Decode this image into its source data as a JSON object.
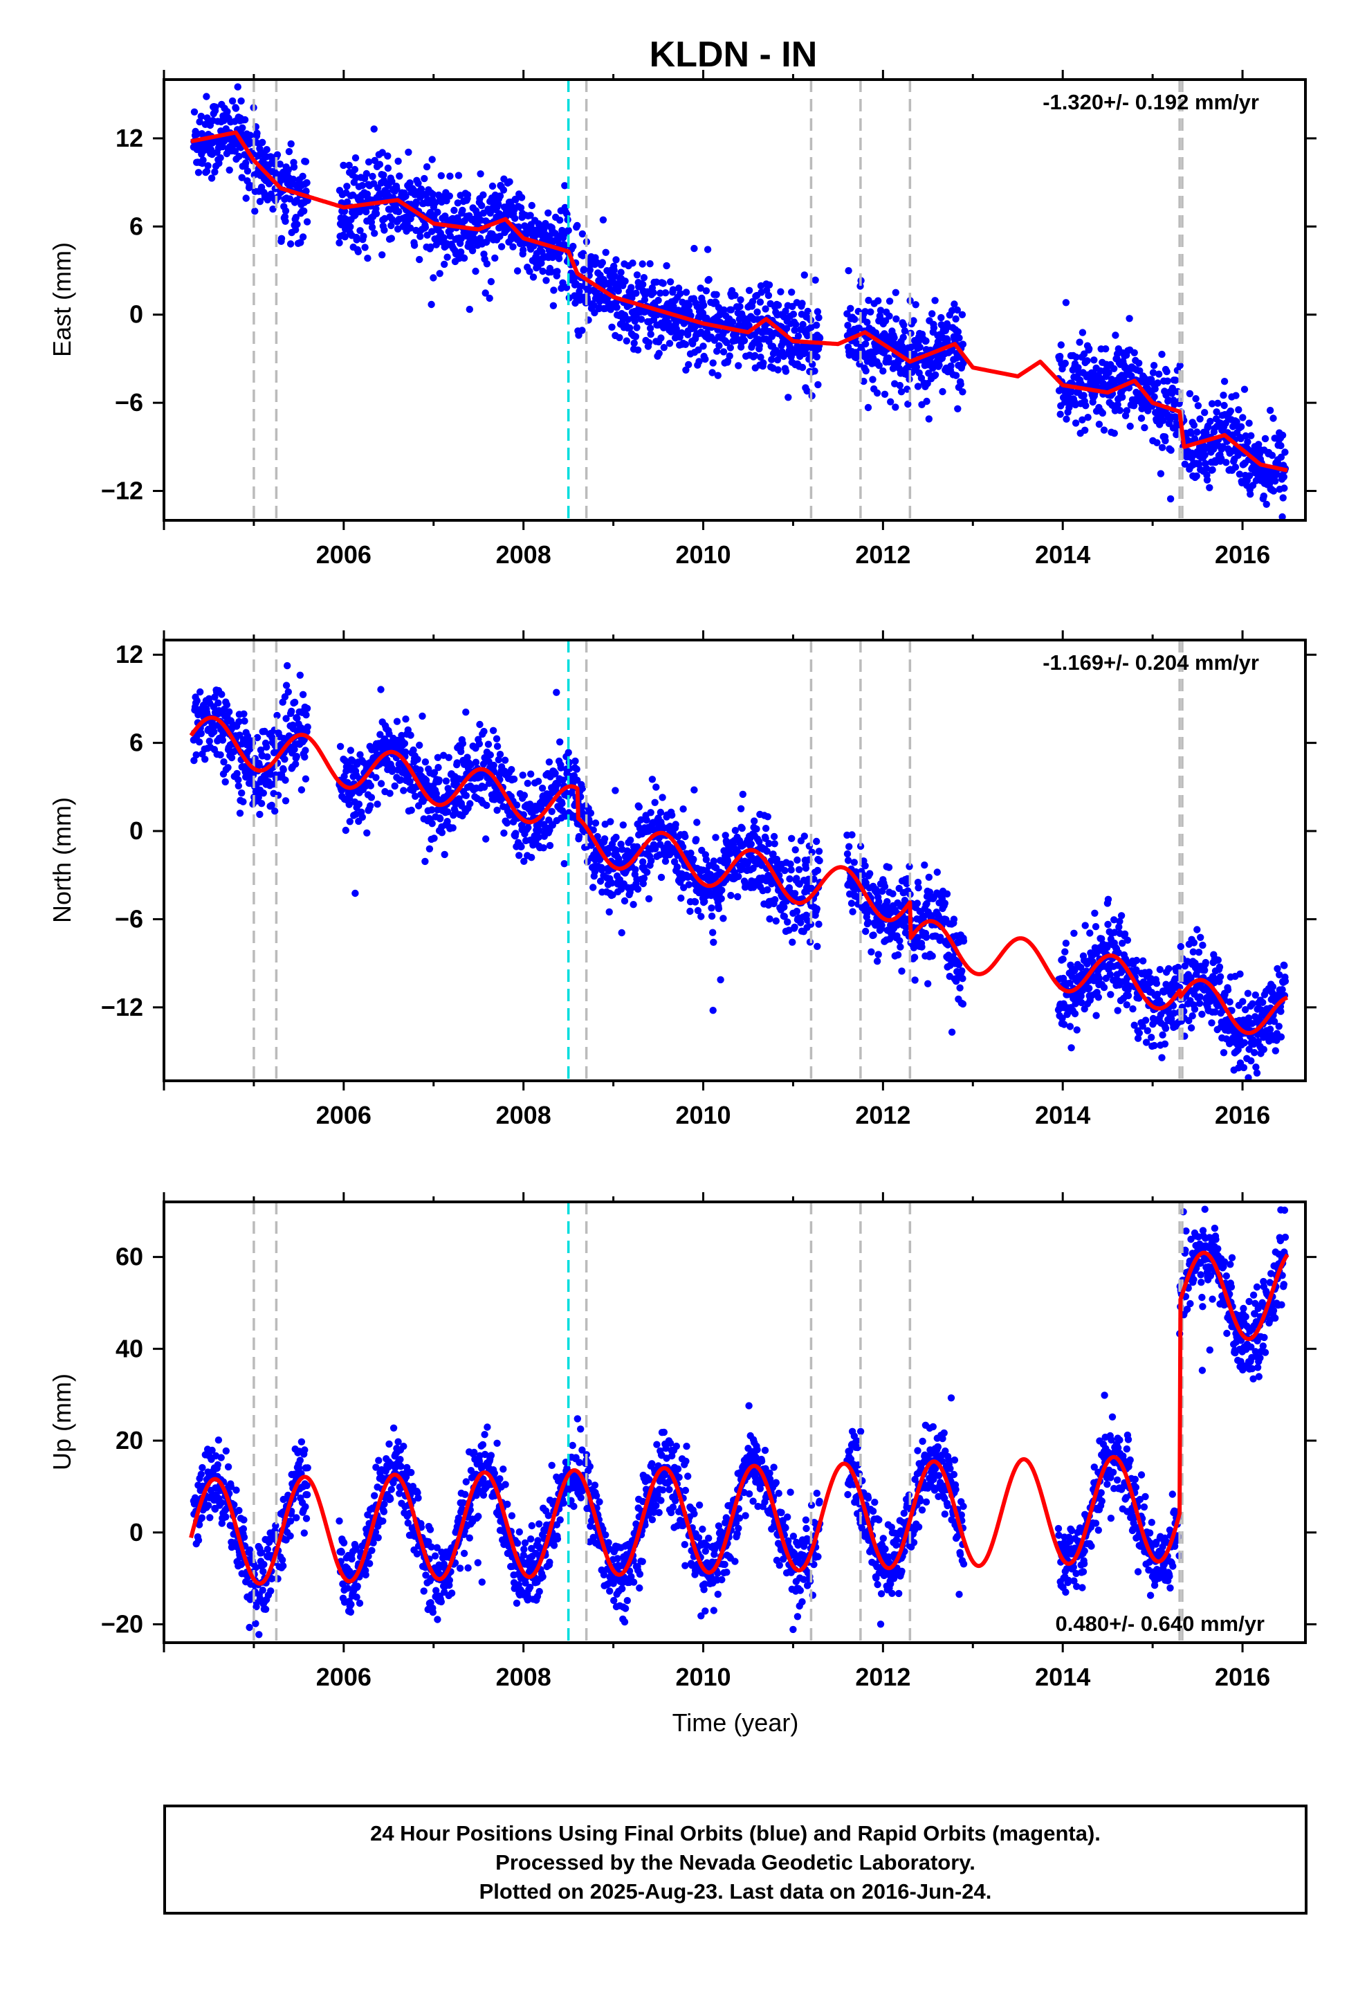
{
  "chart_data": [
    {
      "type": "scatter",
      "title": "KLDN - IN",
      "xlabel": "",
      "ylabel": "East (mm)",
      "xlim": [
        2004.0,
        2016.7
      ],
      "ylim": [
        -14,
        16
      ],
      "xticks": [
        "2006",
        "2008",
        "2010",
        "2012",
        "2014",
        "2016"
      ],
      "yticks": [
        "12",
        "6",
        "0",
        "-6",
        "-12"
      ],
      "rate_label": "-1.320+/- 0.192 mm/yr",
      "rate_position": "top-right",
      "series": [
        {
          "name": "Final Orbits",
          "color": "#0000ff",
          "style": "points"
        },
        {
          "name": "model",
          "color": "#ff0000",
          "style": "line"
        }
      ],
      "model": {
        "trend": -1.32,
        "seasonal": [
          [
            2004.3,
            11.8
          ],
          [
            2004.8,
            12.4
          ],
          [
            2005.0,
            10.5
          ],
          [
            2005.3,
            8.6
          ],
          [
            2006.0,
            7.3
          ],
          [
            2006.6,
            7.8
          ],
          [
            2007.0,
            6.2
          ],
          [
            2007.5,
            5.8
          ],
          [
            2007.8,
            6.5
          ],
          [
            2008.0,
            5.2
          ],
          [
            2008.5,
            4.3
          ],
          [
            2008.6,
            2.8
          ],
          [
            2009.0,
            1.2
          ],
          [
            2009.5,
            0.3
          ],
          [
            2010.0,
            -0.6
          ],
          [
            2010.5,
            -1.2
          ],
          [
            2010.7,
            -0.3
          ],
          [
            2011.0,
            -1.8
          ],
          [
            2011.5,
            -2.0
          ],
          [
            2011.8,
            -1.2
          ],
          [
            2012.3,
            -3.2
          ],
          [
            2012.8,
            -2.0
          ],
          [
            2013.0,
            -3.6
          ],
          [
            2013.5,
            -4.2
          ],
          [
            2013.75,
            -3.2
          ],
          [
            2014.0,
            -4.8
          ],
          [
            2014.5,
            -5.3
          ],
          [
            2014.8,
            -4.5
          ],
          [
            2015.0,
            -6.0
          ],
          [
            2015.3,
            -6.6
          ],
          [
            2015.35,
            -9.0
          ],
          [
            2015.8,
            -8.2
          ],
          [
            2016.2,
            -10.2
          ],
          [
            2016.5,
            -10.6
          ]
        ]
      },
      "vlines": {
        "gray": [
          2005.0,
          2005.25,
          2008.7,
          2011.2,
          2011.75,
          2012.3,
          2015.3,
          2015.33
        ],
        "cyan": [
          2008.5
        ]
      },
      "data_gaps": [
        [
          2005.6,
          2005.95
        ],
        [
          2011.3,
          2011.6
        ],
        [
          2012.9,
          2013.95
        ]
      ]
    },
    {
      "type": "scatter",
      "title": "",
      "xlabel": "",
      "ylabel": "North (mm)",
      "xlim": [
        2004.0,
        2016.7
      ],
      "ylim": [
        -17,
        13
      ],
      "xticks": [
        "2006",
        "2008",
        "2010",
        "2012",
        "2014",
        "2016"
      ],
      "yticks": [
        "12",
        "6",
        "0",
        "-6",
        "-12"
      ],
      "rate_label": "-1.169+/- 0.204 mm/yr",
      "rate_position": "top-right",
      "series": [
        {
          "name": "Final Orbits",
          "color": "#0000ff",
          "style": "points"
        },
        {
          "name": "model",
          "color": "#ff0000",
          "style": "line"
        }
      ],
      "model": {
        "trend": -1.169,
        "amplitude": 1.5,
        "breaks": [
          [
            2008.6,
            -2.0
          ],
          [
            2012.3,
            -2.5
          ],
          [
            2015.3,
            -0.5
          ]
        ],
        "start": 6.5
      },
      "vlines": {
        "gray": [
          2005.0,
          2005.25,
          2008.7,
          2011.2,
          2011.75,
          2012.3,
          2015.3,
          2015.33
        ],
        "cyan": [
          2008.5
        ]
      },
      "data_gaps": [
        [
          2005.6,
          2005.95
        ],
        [
          2011.3,
          2011.6
        ],
        [
          2012.9,
          2013.95
        ]
      ]
    },
    {
      "type": "scatter",
      "title": "",
      "xlabel": "Time (year)",
      "ylabel": "Up (mm)",
      "xlim": [
        2004.0,
        2016.7
      ],
      "ylim": [
        -24,
        72
      ],
      "xticks": [
        "2006",
        "2008",
        "2010",
        "2012",
        "2014",
        "2016"
      ],
      "yticks": [
        "60",
        "40",
        "20",
        "0",
        "-20"
      ],
      "rate_label": "0.480+/- 0.640 mm/yr",
      "rate_position": "bottom-right",
      "series": [
        {
          "name": "Final Orbits",
          "color": "#0000ff",
          "style": "points"
        },
        {
          "name": "model",
          "color": "#ff0000",
          "style": "line"
        }
      ],
      "model": {
        "trend": 0.48,
        "amplitude": 11.5,
        "breaks": [
          [
            2015.3,
            46.0
          ]
        ],
        "start": 0.0
      },
      "vlines": {
        "gray": [
          2005.0,
          2005.25,
          2008.7,
          2011.2,
          2011.75,
          2012.3,
          2015.3,
          2015.33
        ],
        "cyan": [
          2008.5
        ]
      },
      "data_gaps": [
        [
          2005.6,
          2005.95
        ],
        [
          2011.3,
          2011.6
        ],
        [
          2012.9,
          2013.95
        ]
      ]
    }
  ],
  "colors": {
    "points": "#0000ff",
    "model": "#ff0000",
    "event_line": "#bbbbbb",
    "equipment_line": "#00dddd"
  },
  "footer": {
    "line1": "24 Hour Positions Using Final Orbits (blue) and Rapid Orbits (magenta).",
    "line2": "Processed by the Nevada Geodetic Laboratory.",
    "line3": "Plotted on 2025-Aug-23. Last data on 2016-Jun-24."
  }
}
